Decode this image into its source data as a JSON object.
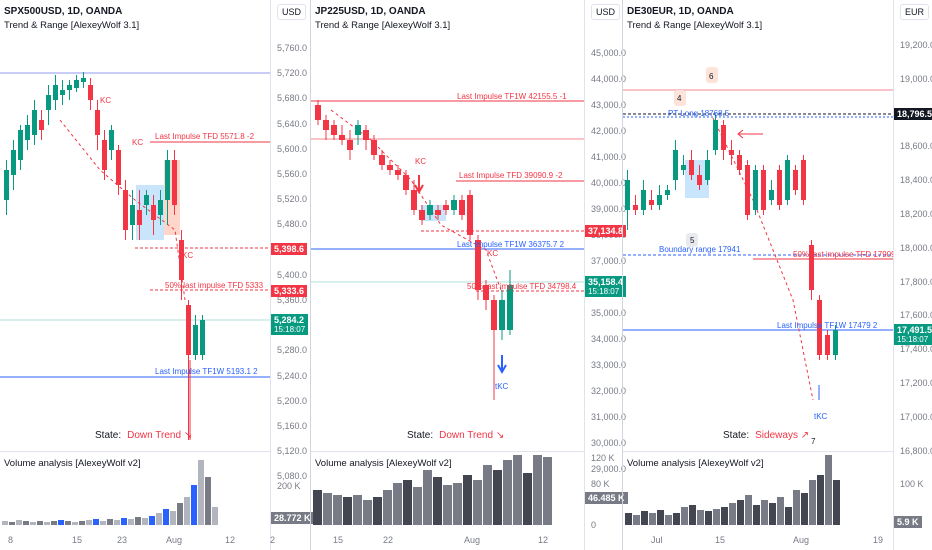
{
  "colors": {
    "up": "#089981",
    "down": "#f23645",
    "red": "#f23645",
    "blue": "#2962ff",
    "grey": "#787b86"
  },
  "panels": [
    {
      "title": "SPX500USD, 1D, OANDA",
      "indicator": "Trend & Range [AlexeyWolf 3.1]",
      "currency": "USD",
      "price_labels": [
        "5,760.0",
        "5,720.0",
        "5,680.0",
        "5,640.0",
        "5,600.0",
        "5,560.0",
        "5,520.0",
        "5,480.0",
        "5,440.0",
        "5,400.0",
        "5,360.0",
        "5,320.0",
        "5,280.0",
        "5,240.0",
        "5,200.0",
        "5,160.0",
        "5,120.0",
        "5,080.0"
      ],
      "badges": [
        {
          "text": "5,398.6",
          "color": "#f23645"
        },
        {
          "text": "5,333.6",
          "color": "#f23645"
        },
        {
          "text": "5,284.2",
          "sub": "15:18:07",
          "color": "#089981"
        }
      ],
      "annotations": [
        "KC",
        "KC",
        "Last Impulse TFD 5571.8 -2",
        "KC",
        "50% last impulse TFD 5333",
        "Last Impulse TF1W 5193.1 2"
      ],
      "state_label": "State:",
      "state_value": "Down Trend ↘",
      "volume_title": "Volume analysis [AlexeyWolf v2]",
      "volume_labels": [
        "200 K"
      ],
      "volume_badge": "28.772 K",
      "x_ticks": [
        "8",
        "15",
        "23",
        "Aug",
        "12"
      ],
      "axis_corner": "2"
    },
    {
      "title": "JP225USD, 1D, OANDA",
      "indicator": "Trend & Range [AlexeyWolf 3.1]",
      "currency": "USD",
      "price_labels": [
        "45,000.0",
        "44,000.0",
        "43,000.0",
        "42,000.0",
        "41,000.0",
        "40,000.0",
        "39,000.0",
        "38,000.0",
        "37,000.0",
        "36,000.0",
        "35,000.0",
        "34,000.0",
        "33,000.0",
        "32,000.0",
        "31,000.0",
        "30,000.0",
        "29,000.0"
      ],
      "badges": [
        {
          "text": "37,134.8",
          "color": "#f23645"
        },
        {
          "text": "35,158.4",
          "sub": "15:18:07",
          "color": "#089981"
        }
      ],
      "annotations": [
        "Last Impulse TF1W 42155.5 -1",
        "KC",
        "Last Impulse TFD 39090.9 -2",
        "Last Impulse TF1W 36375.7 2",
        "KC",
        "50% last impulse TFD 34798.4",
        "tKC"
      ],
      "state_label": "State:",
      "state_value": "Down Trend ↘",
      "volume_title": "Volume analysis [AlexeyWolf v2]",
      "volume_labels": [
        "120 K",
        "80 K",
        "0"
      ],
      "volume_badge": "46.485 K",
      "x_ticks": [
        "15",
        "22",
        "Aug",
        "12"
      ],
      "axis_corner": ""
    },
    {
      "title": "DE30EUR, 1D, OANDA",
      "indicator": "Trend & Range [AlexeyWolf 3.1]",
      "currency": "EUR",
      "price_labels": [
        "19,200.0",
        "19,000.0",
        "18,800.0",
        "18,600.0",
        "18,400.0",
        "18,200.0",
        "18,000.0",
        "17,800.0",
        "17,600.0",
        "17,400.0",
        "17,200.0",
        "17,000.0",
        "16,800.0"
      ],
      "badges": [
        {
          "text": "18,796.5",
          "color": "#131722"
        },
        {
          "text": "17,491.5",
          "sub": "15:18:07",
          "color": "#089981"
        }
      ],
      "annotations": [
        "6",
        "4",
        "PT Long 18768.5",
        "5",
        "Boundary range 17941",
        "50% last impulse TFD 17909.5",
        "Last Impulse TF1W 17479 2",
        "tKC",
        "7"
      ],
      "state_label": "State:",
      "state_value": "Sideways ↗",
      "volume_title": "Volume analysis [AlexeyWolf v2]",
      "volume_labels": [
        "100 K"
      ],
      "volume_badge": "5.9 K",
      "x_ticks": [
        "Jul",
        "15",
        "Aug",
        "19"
      ],
      "axis_corner": ""
    }
  ]
}
